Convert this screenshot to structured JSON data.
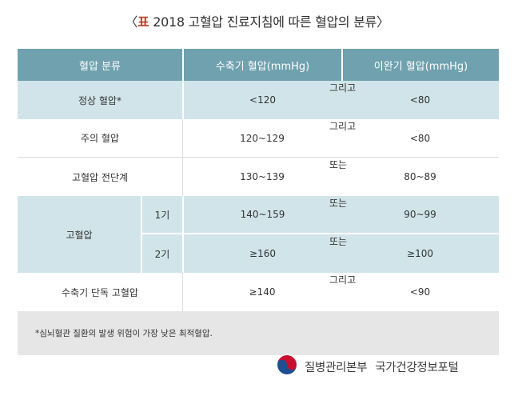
{
  "title": {
    "open_bracket": "〈",
    "label": "표",
    "text": " 2018 고혈압 진료지침에 따른 혈압의 분류",
    "close_bracket": "〉"
  },
  "table": {
    "headers": {
      "classification": "혈압 분류",
      "systolic": "수축기 혈압(mmHg)",
      "diastolic": "이완기 혈압(mmHg)"
    },
    "rows": [
      {
        "name": "정상 혈압*",
        "systolic": "<120",
        "cond": "그리고",
        "diastolic": "<80"
      },
      {
        "name": "주의 혈압",
        "systolic": "120~129",
        "cond": "그리고",
        "diastolic": "<80"
      },
      {
        "name": "고혈압 전단계",
        "systolic": "130~139",
        "cond": "또는",
        "diastolic": "80~89"
      },
      {
        "name": "고혈압",
        "stage": "1기",
        "systolic": "140~159",
        "cond": "또는",
        "diastolic": "90~99"
      },
      {
        "stage": "2기",
        "systolic": "≥160",
        "cond": "또는",
        "diastolic": "≥100"
      },
      {
        "name": "수축기 단독 고혈압",
        "systolic": "≥140",
        "cond": "그리고",
        "diastolic": "<90"
      }
    ],
    "footnote": "*심뇌혈관 질환의 발생 위험이 가장 낮은 최적혈압."
  },
  "footer": {
    "org": "질병관리본부",
    "portal": "국가건강정보포털"
  },
  "colors": {
    "header": "#6fa1ae",
    "tint": "#d1e4ea",
    "note": "#e6e6e6",
    "title_accent": "#c0392b"
  },
  "icons": {
    "logo": "taegeuk-logo-icon"
  }
}
